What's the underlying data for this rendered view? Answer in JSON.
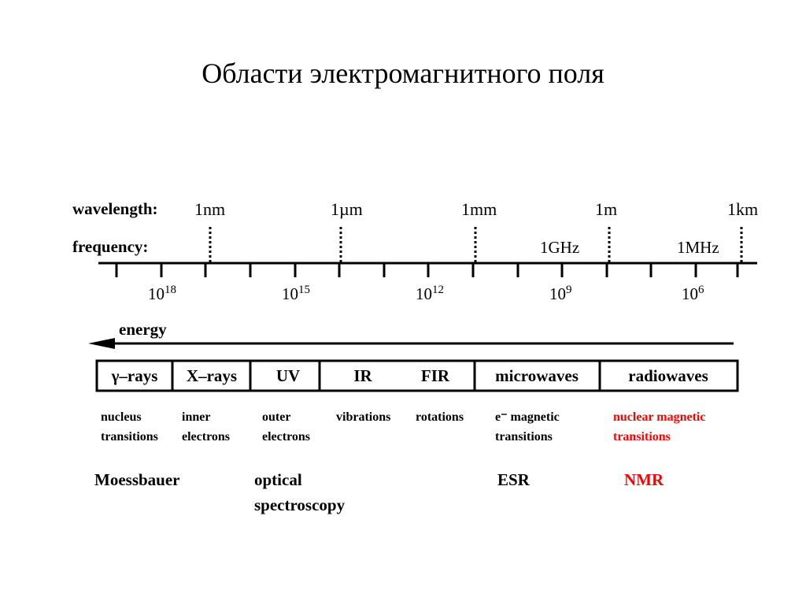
{
  "title": "Области электромагнитного поля",
  "scale": {
    "wavelength_label": "wavelength:",
    "frequency_label": "frequency:",
    "wavelength_marks": [
      "1nm",
      "1µm",
      "1mm",
      "1m",
      "1km"
    ],
    "frequency_names": [
      "1GHz",
      "1MHz"
    ],
    "power_ticks": [
      {
        "base": "10",
        "exp": "18"
      },
      {
        "base": "10",
        "exp": "15"
      },
      {
        "base": "10",
        "exp": "12"
      },
      {
        "base": "10",
        "exp": "9"
      },
      {
        "base": "10",
        "exp": "6"
      }
    ]
  },
  "energy_label": "energy",
  "regions": [
    "γ–rays",
    "X–rays",
    "UV",
    "IR",
    "FIR",
    "microwaves",
    "radiowaves"
  ],
  "transitions": [
    {
      "line1": "nucleus",
      "line2": "transitions"
    },
    {
      "line1": "inner",
      "line2": "electrons"
    },
    {
      "line1": "outer",
      "line2": "electrons"
    },
    {
      "line1": "vibrations",
      "line2": ""
    },
    {
      "line1": "rotations",
      "line2": ""
    },
    {
      "line1": "e⁻ magnetic",
      "line2": "transitions"
    },
    {
      "line1": "nuclear magnetic",
      "line2": "transitions"
    }
  ],
  "methods": [
    {
      "line1": "Moessbauer",
      "line2": ""
    },
    {
      "line1": "optical",
      "line2": "spectroscopy"
    },
    {
      "line1": "ESR",
      "line2": ""
    },
    {
      "line1": "NMR",
      "line2": ""
    }
  ],
  "colors": {
    "highlight": "#ff0000",
    "ink": "#000000"
  }
}
